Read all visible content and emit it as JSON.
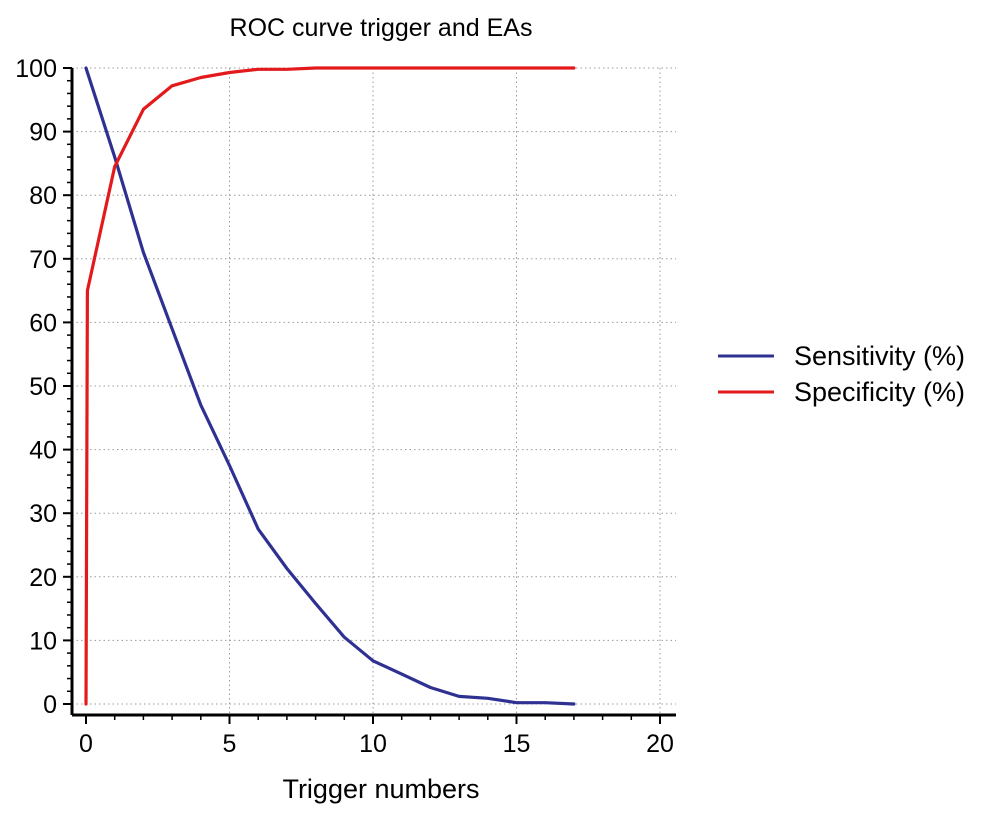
{
  "chart_data": {
    "type": "line",
    "title": "ROC curve trigger and EAs",
    "xlabel": "Trigger numbers",
    "ylabel": "",
    "xlim": [
      0,
      20
    ],
    "ylim": [
      0,
      100
    ],
    "xticks": [
      0,
      5,
      10,
      15,
      20
    ],
    "yticks": [
      0,
      10,
      20,
      30,
      40,
      50,
      60,
      70,
      80,
      90,
      100
    ],
    "xtick_labels": [
      "0",
      "5",
      "10",
      "15",
      "20"
    ],
    "ytick_labels": [
      "0",
      "10",
      "20",
      "30",
      "40",
      "50",
      "60",
      "70",
      "80",
      "90",
      "100"
    ],
    "grid": true,
    "legend_position": "right",
    "series": [
      {
        "name": "Sensitivity (%)",
        "color": "#2e3192",
        "x": [
          0,
          1,
          2,
          3,
          4,
          5,
          6,
          7,
          8,
          9,
          10,
          11,
          12,
          13,
          14,
          15,
          16,
          17
        ],
        "y": [
          100,
          86,
          71,
          59,
          47,
          37.5,
          27.5,
          21.3,
          15.8,
          10.5,
          6.8,
          4.7,
          2.6,
          1.2,
          0.9,
          0.2,
          0.2,
          0
        ]
      },
      {
        "name": "Specificity (%)",
        "color": "#e31a1c",
        "x": [
          0,
          0.05,
          1,
          2,
          3,
          4,
          5,
          6,
          7,
          8,
          9,
          10,
          11,
          12,
          13,
          14,
          15,
          16,
          17
        ],
        "y": [
          0,
          65,
          84.5,
          93.5,
          97.2,
          98.5,
          99.3,
          99.8,
          99.8,
          100,
          100,
          100,
          100,
          100,
          100,
          100,
          100,
          100,
          100
        ]
      }
    ]
  }
}
